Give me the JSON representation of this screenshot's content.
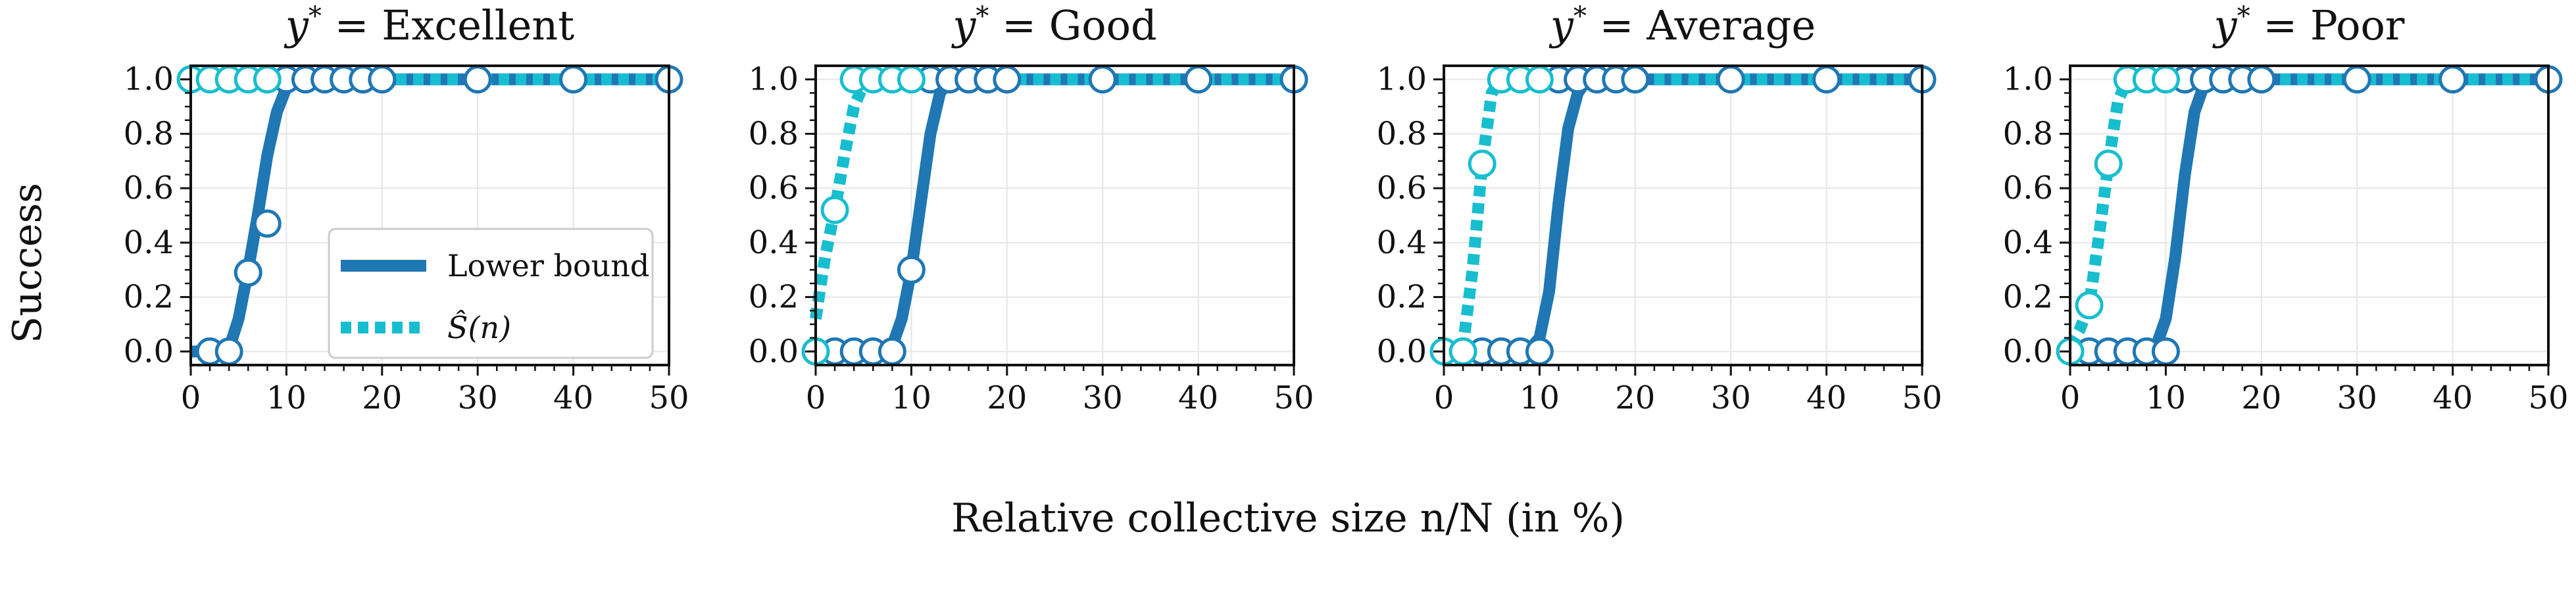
{
  "colors": {
    "lower_bound": "#1f77b4",
    "estimate": "#17becf",
    "grid": "#e6e6e6",
    "axis": "#111111"
  },
  "legend": {
    "lower_bound_label": "Lower bound",
    "estimate_label": "Ŝ(n)"
  },
  "chart_data": {
    "type": "line",
    "figure_xlabel": "Relative collective size n/N (in %)",
    "figure_ylabel": "Success",
    "xlim": [
      0,
      50
    ],
    "ylim": [
      -0.05,
      1.05
    ],
    "xticks": [
      0,
      10,
      20,
      30,
      40,
      50
    ],
    "yticks": [
      "0.0",
      "0.2",
      "0.4",
      "0.6",
      "0.8",
      "1.0"
    ],
    "panels": [
      {
        "title_prefix": "y*",
        "title_value": "= Excellent",
        "series": [
          {
            "name": "Lower bound",
            "curve_x": [
              0,
              2,
              4,
              5,
              6,
              7,
              8,
              9,
              10,
              12,
              14,
              16,
              18,
              20,
              30,
              40,
              50
            ],
            "curve_y": [
              0,
              0,
              0.01,
              0.12,
              0.3,
              0.5,
              0.72,
              0.88,
              0.97,
              1,
              1,
              1,
              1,
              1,
              1,
              1,
              1
            ],
            "markers_x": [
              2,
              4,
              6,
              8,
              10,
              12,
              14,
              16,
              18,
              20,
              30,
              40,
              50
            ],
            "markers_y": [
              0,
              0,
              0.29,
              0.47,
              1,
              1,
              1,
              1,
              1,
              1,
              1,
              1,
              1
            ]
          },
          {
            "name": "Ŝ(n)",
            "curve_x": [
              0,
              2,
              4,
              6,
              8,
              10,
              20,
              30,
              40,
              50
            ],
            "curve_y": [
              1,
              1,
              1,
              1,
              1,
              1,
              1,
              1,
              1,
              1
            ],
            "markers_x": [
              0,
              2,
              4,
              6,
              8
            ],
            "markers_y": [
              1,
              1,
              1,
              1,
              1
            ]
          }
        ]
      },
      {
        "title_prefix": "y*",
        "title_value": "= Good",
        "series": [
          {
            "name": "Lower bound",
            "curve_x": [
              0,
              2,
              4,
              6,
              7,
              8,
              9,
              10,
              11,
              12,
              13,
              14,
              16,
              18,
              20,
              30,
              40,
              50
            ],
            "curve_y": [
              0,
              0,
              0,
              0,
              0,
              0.02,
              0.12,
              0.3,
              0.55,
              0.8,
              0.95,
              1,
              1,
              1,
              1,
              1,
              1,
              1
            ],
            "markers_x": [
              0,
              2,
              4,
              6,
              8,
              10,
              12,
              14,
              16,
              18,
              20,
              30,
              40,
              50
            ],
            "markers_y": [
              0,
              0,
              0,
              0,
              0,
              0.3,
              1,
              1,
              1,
              1,
              1,
              1,
              1,
              1
            ]
          },
          {
            "name": "Ŝ(n)",
            "curve_x": [
              0,
              0.5,
              1,
              2,
              3,
              4,
              5,
              6,
              8,
              10,
              20,
              30,
              40,
              50
            ],
            "curve_y": [
              0.12,
              0.24,
              0.35,
              0.52,
              0.72,
              0.9,
              0.98,
              1,
              1,
              1,
              1,
              1,
              1,
              1
            ],
            "markers_x": [
              0,
              2,
              4,
              6,
              8,
              10
            ],
            "markers_y": [
              0,
              0.52,
              1,
              1,
              1,
              1
            ]
          }
        ]
      },
      {
        "title_prefix": "y*",
        "title_value": "= Average",
        "series": [
          {
            "name": "Lower bound",
            "curve_x": [
              0,
              2,
              4,
              6,
              8,
              9,
              10,
              11,
              12,
              13,
              14,
              15,
              16,
              18,
              20,
              30,
              40,
              50
            ],
            "curve_y": [
              0,
              0,
              0,
              0,
              0,
              0.01,
              0.05,
              0.22,
              0.55,
              0.82,
              0.95,
              1,
              1,
              1,
              1,
              1,
              1,
              1
            ],
            "markers_x": [
              2,
              4,
              6,
              8,
              10,
              12,
              14,
              16,
              18,
              20,
              30,
              40,
              50
            ],
            "markers_y": [
              0,
              0,
              0,
              0,
              0,
              1,
              1,
              1,
              1,
              1,
              1,
              1,
              1
            ]
          },
          {
            "name": "Ŝ(n)",
            "curve_x": [
              0,
              1,
              2,
              3,
              4,
              5,
              6,
              8,
              10,
              20,
              30,
              40,
              50
            ],
            "curve_y": [
              0,
              0,
              0.02,
              0.3,
              0.69,
              0.95,
              1,
              1,
              1,
              1,
              1,
              1,
              1
            ],
            "markers_x": [
              0,
              2,
              4,
              6,
              8,
              10
            ],
            "markers_y": [
              0,
              0,
              0.69,
              1,
              1,
              1
            ]
          }
        ]
      },
      {
        "title_prefix": "y*",
        "title_value": "= Poor",
        "series": [
          {
            "name": "Lower bound",
            "curve_x": [
              0,
              2,
              4,
              6,
              8,
              9,
              10,
              11,
              12,
              13,
              14,
              16,
              18,
              20,
              30,
              40,
              50
            ],
            "curve_y": [
              0,
              0,
              0,
              0,
              0,
              0.02,
              0.12,
              0.35,
              0.65,
              0.88,
              0.98,
              1,
              1,
              1,
              1,
              1,
              1
            ],
            "markers_x": [
              2,
              4,
              6,
              8,
              10,
              12,
              14,
              16,
              18,
              20,
              30,
              40,
              50
            ],
            "markers_y": [
              0,
              0,
              0,
              0,
              0,
              1,
              1,
              1,
              1,
              1,
              1,
              1,
              1
            ]
          },
          {
            "name": "Ŝ(n)",
            "curve_x": [
              0,
              1,
              2,
              3,
              4,
              5,
              6,
              8,
              10,
              20,
              30,
              40,
              50
            ],
            "curve_y": [
              0.02,
              0.08,
              0.17,
              0.42,
              0.69,
              0.92,
              1,
              1,
              1,
              1,
              1,
              1,
              1
            ],
            "markers_x": [
              0,
              2,
              4,
              6,
              8,
              10
            ],
            "markers_y": [
              0,
              0.17,
              0.69,
              1,
              1,
              1
            ]
          }
        ]
      }
    ]
  }
}
